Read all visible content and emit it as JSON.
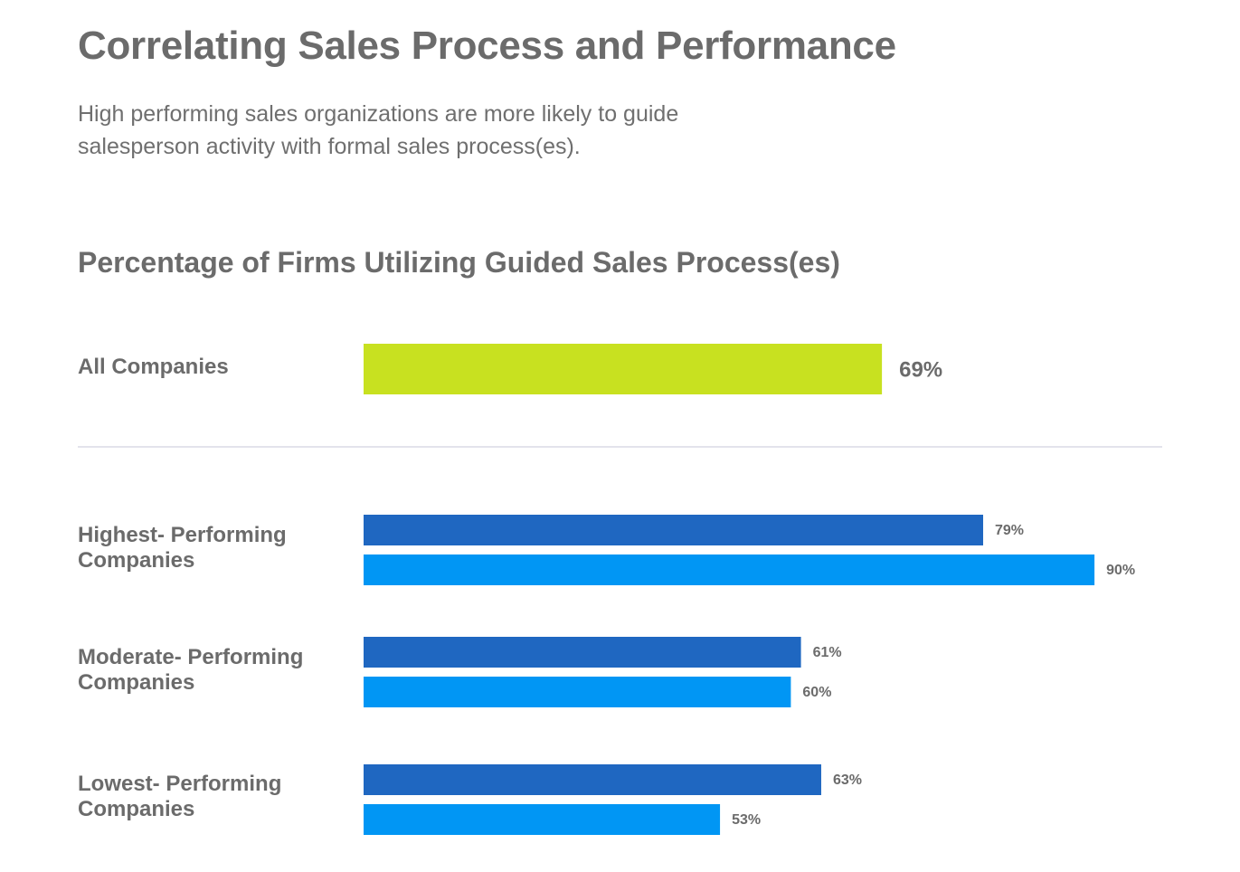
{
  "page": {
    "title": "Correlating Sales Process and Performance",
    "subtitle": "High performing sales organizations are more likely to guide salesperson activity with formal sales process(es)."
  },
  "chart_data": {
    "type": "bar",
    "orientation": "horizontal",
    "title": "Percentage of Firms Utilizing Guided Sales Process(es)",
    "xlabel": "",
    "ylabel": "",
    "unit": "%",
    "grid": false,
    "colors": {
      "all": "#c8e120",
      "series_a": "#1f67c1",
      "series_b": "#0196f4",
      "label": "#6b6b6b",
      "divider": "#e3e3ec"
    },
    "summary": {
      "category": "All Companies",
      "value": 69,
      "label": "69%"
    },
    "categories": [
      "Highest- Performing Companies",
      "Moderate- Performing Companies",
      "Lowest- Performing Companies"
    ],
    "category_lines": [
      [
        "Highest- Performing",
        "Companies"
      ],
      [
        "Moderate- Performing",
        "Companies"
      ],
      [
        "Lowest- Performing",
        "Companies"
      ]
    ],
    "series": [
      {
        "name": "series_a",
        "values": [
          79,
          61,
          63
        ],
        "labels": [
          "79%",
          "61%",
          "63%"
        ]
      },
      {
        "name": "series_b",
        "values": [
          90,
          60,
          53
        ],
        "labels": [
          "90%",
          "60%",
          "53%"
        ]
      }
    ]
  }
}
